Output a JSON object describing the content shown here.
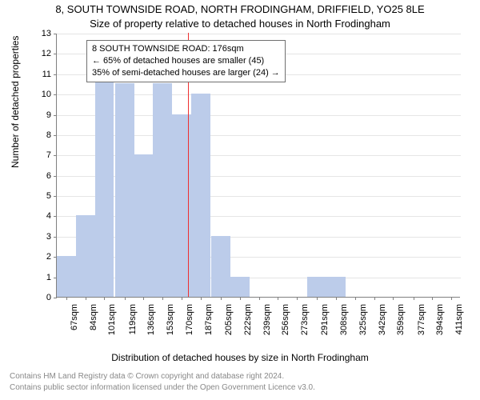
{
  "title": {
    "line1": "8, SOUTH TOWNSIDE ROAD, NORTH FRODINGHAM, DRIFFIELD, YO25 8LE",
    "line2": "Size of property relative to detached houses in North Frodingham"
  },
  "ylabel": "Number of detached properties",
  "xlabel": "Distribution of detached houses by size in North Frodingham",
  "footer": {
    "l1": "Contains HM Land Registry data © Crown copyright and database right 2024.",
    "l2": "Contains public sector information licensed under the Open Government Licence v3.0."
  },
  "annotation": {
    "l1": "8 SOUTH TOWNSIDE ROAD: 176sqm",
    "l2": "← 65% of detached houses are smaller (45)",
    "l3": "35% of semi-detached houses are larger (24) →"
  },
  "marker": {
    "x_value": 176,
    "color": "#ee3030"
  },
  "chart": {
    "type": "histogram",
    "y": {
      "min": 0,
      "max": 13,
      "step": 1
    },
    "x": {
      "min": 58.5,
      "max": 419.5
    },
    "bar_color": "#bcccea",
    "grid_color": "#e5e5e5",
    "axis_color": "#808080",
    "background": "#ffffff",
    "bar_width_units": 17,
    "title_fontsize": 13,
    "label_fontsize": 12,
    "tick_fontsize": 11,
    "xticks": [
      {
        "x": 67,
        "label": "67sqm"
      },
      {
        "x": 84,
        "label": "84sqm"
      },
      {
        "x": 101,
        "label": "101sqm"
      },
      {
        "x": 119,
        "label": "119sqm"
      },
      {
        "x": 136,
        "label": "136sqm"
      },
      {
        "x": 153,
        "label": "153sqm"
      },
      {
        "x": 170,
        "label": "170sqm"
      },
      {
        "x": 187,
        "label": "187sqm"
      },
      {
        "x": 205,
        "label": "205sqm"
      },
      {
        "x": 222,
        "label": "222sqm"
      },
      {
        "x": 239,
        "label": "239sqm"
      },
      {
        "x": 256,
        "label": "256sqm"
      },
      {
        "x": 273,
        "label": "273sqm"
      },
      {
        "x": 291,
        "label": "291sqm"
      },
      {
        "x": 308,
        "label": "308sqm"
      },
      {
        "x": 325,
        "label": "325sqm"
      },
      {
        "x": 342,
        "label": "342sqm"
      },
      {
        "x": 359,
        "label": "359sqm"
      },
      {
        "x": 377,
        "label": "377sqm"
      },
      {
        "x": 394,
        "label": "394sqm"
      },
      {
        "x": 411,
        "label": "411sqm"
      }
    ],
    "bars": [
      {
        "x": 67,
        "y": 2
      },
      {
        "x": 84,
        "y": 4
      },
      {
        "x": 101,
        "y": 11
      },
      {
        "x": 119,
        "y": 10.5
      },
      {
        "x": 136,
        "y": 7
      },
      {
        "x": 153,
        "y": 10.5
      },
      {
        "x": 170,
        "y": 9
      },
      {
        "x": 187,
        "y": 10
      },
      {
        "x": 205,
        "y": 3
      },
      {
        "x": 222,
        "y": 1
      },
      {
        "x": 239,
        "y": 0
      },
      {
        "x": 256,
        "y": 0
      },
      {
        "x": 273,
        "y": 0
      },
      {
        "x": 291,
        "y": 1
      },
      {
        "x": 308,
        "y": 1
      },
      {
        "x": 342,
        "y": 0
      },
      {
        "x": 359,
        "y": 0
      },
      {
        "x": 394,
        "y": 0
      },
      {
        "x": 411,
        "y": 0
      }
    ]
  }
}
